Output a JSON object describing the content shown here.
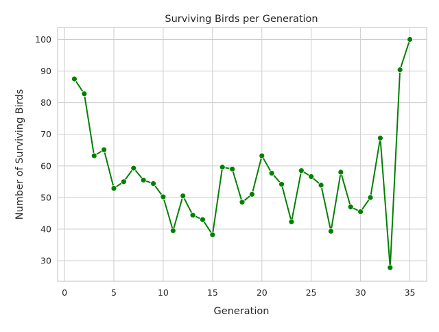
{
  "chart_data": {
    "type": "line",
    "title": "Surviving Birds per Generation",
    "xlabel": "Generation",
    "ylabel": "Number of Surviving Birds",
    "xlim": [
      -0.7,
      36.7
    ],
    "ylim": [
      23.5,
      103.8
    ],
    "x_ticks": [
      0,
      5,
      10,
      15,
      20,
      25,
      30,
      35
    ],
    "y_ticks": [
      30,
      40,
      50,
      60,
      70,
      80,
      90,
      100
    ],
    "grid": true,
    "legend": "none",
    "series": [
      {
        "color": "#008000",
        "marker": "circle",
        "x": [
          1,
          2,
          3,
          4,
          5,
          6,
          7,
          8,
          9,
          10,
          11,
          12,
          13,
          14,
          15,
          16,
          17,
          18,
          19,
          20,
          21,
          22,
          23,
          24,
          25,
          26,
          27,
          28,
          29,
          30,
          31,
          32,
          33,
          34,
          35
        ],
        "y": [
          87.5,
          82.8,
          63.2,
          65.1,
          52.9,
          55.0,
          59.3,
          55.5,
          54.4,
          50.2,
          39.5,
          50.5,
          44.4,
          43.0,
          38.2,
          59.6,
          59.0,
          48.5,
          51.0,
          63.2,
          57.7,
          54.2,
          42.3,
          58.5,
          56.6,
          53.9,
          39.3,
          58.0,
          47.0,
          45.5,
          50.0,
          68.8,
          27.8,
          90.4,
          100.0
        ]
      }
    ]
  }
}
